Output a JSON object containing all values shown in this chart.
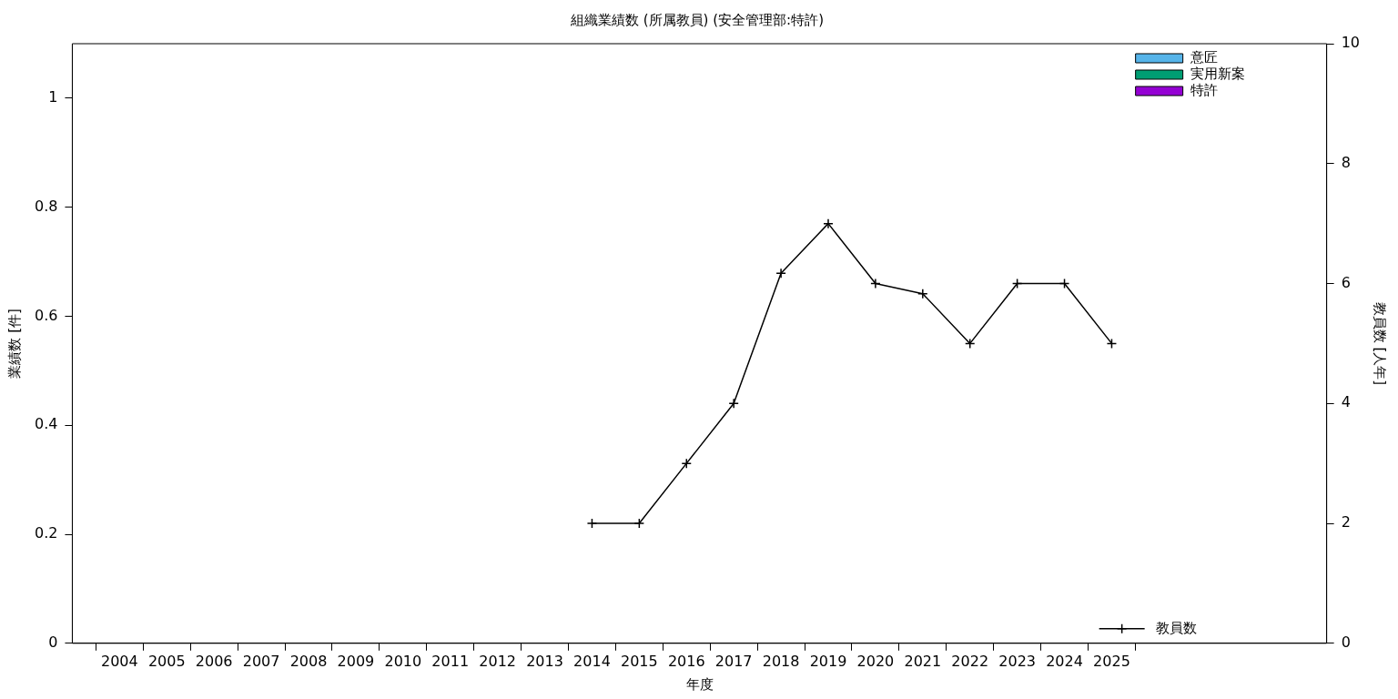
{
  "chart_data": {
    "type": "bar",
    "title": "組織業績数 (所属教員) (安全管理部:特許)",
    "xlabel": "年度",
    "ylabel": "業績数 [件]",
    "y2label": "教員数 [人年]",
    "x": [
      2004,
      2005,
      2006,
      2007,
      2008,
      2009,
      2010,
      2011,
      2012,
      2013,
      2014,
      2015,
      2016,
      2017,
      2018,
      2019,
      2020,
      2021,
      2022,
      2023,
      2024,
      2025
    ],
    "xlim": [
      2003,
      2029.55
    ],
    "xticks": [
      2004,
      2005,
      2006,
      2007,
      2008,
      2009,
      2010,
      2011,
      2012,
      2013,
      2014,
      2015,
      2016,
      2017,
      2018,
      2019,
      2020,
      2021,
      2022,
      2023,
      2024,
      2025
    ],
    "ylim": [
      0,
      1.1
    ],
    "yticks": [
      0,
      0.2,
      0.4,
      0.6,
      0.8,
      1
    ],
    "y2lim": [
      0,
      10
    ],
    "y2ticks": [
      0,
      2,
      4,
      6,
      8,
      10
    ],
    "legend": "top right",
    "grid": false,
    "series": [
      {
        "name": "意匠",
        "color": "#56b4e9",
        "values": [
          0,
          0,
          0,
          0,
          0,
          0,
          0,
          0,
          0,
          0,
          0,
          0,
          0,
          0,
          0,
          0,
          0,
          0,
          0,
          0,
          0,
          0
        ]
      },
      {
        "name": "実用新案",
        "color": "#009e73",
        "values": [
          0,
          0,
          0,
          0,
          0,
          0,
          0,
          0,
          0,
          0,
          0,
          0,
          0,
          0,
          0,
          0,
          0,
          0,
          0,
          0,
          0,
          0
        ]
      },
      {
        "name": "特許",
        "color": "#9400d3",
        "values": [
          0,
          0,
          0,
          0,
          0,
          0,
          0,
          0,
          0,
          0,
          0,
          0,
          0,
          0,
          0,
          0,
          0,
          0,
          0,
          0,
          0,
          0
        ]
      },
      {
        "name": "教員数",
        "type": "line",
        "axis": "y2",
        "color": "#000000",
        "marker": "cross",
        "line_style": "solid",
        "values": [
          null,
          null,
          null,
          null,
          null,
          null,
          null,
          null,
          null,
          null,
          2,
          2,
          3,
          4,
          6.17,
          7,
          6,
          5.83,
          5,
          6,
          6,
          5
        ]
      }
    ]
  }
}
